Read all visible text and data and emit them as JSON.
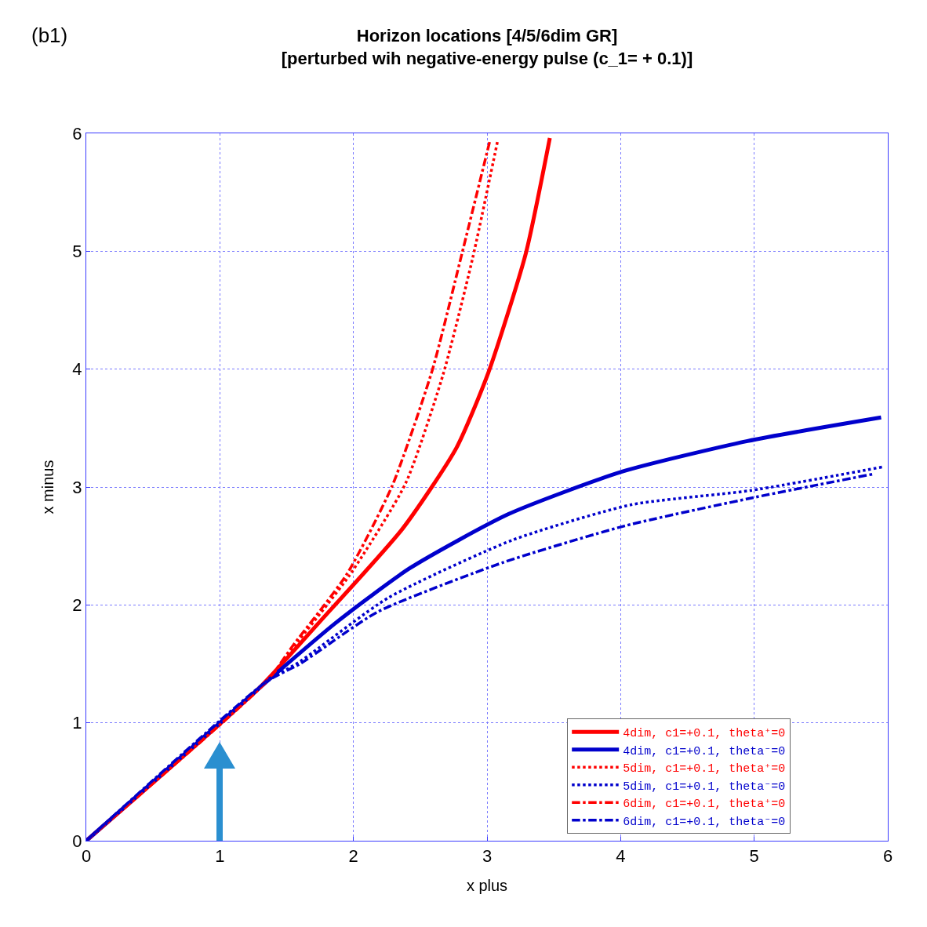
{
  "chart_data": {
    "type": "line",
    "title": "Horizon locations [4/5/6dim GR]\n[perturbed wih negative-energy pulse (c_1= + 0.1)]",
    "annotations": [
      "(b1)"
    ],
    "xlabel": "x plus",
    "ylabel": "x minus",
    "xlim": [
      0,
      6
    ],
    "ylim": [
      0,
      6
    ],
    "xticks": [
      0,
      1,
      2,
      3,
      4,
      5,
      6
    ],
    "yticks": [
      0,
      1,
      2,
      3,
      4,
      5,
      6
    ],
    "grid": true,
    "legend": "bottom right",
    "series": [
      {
        "name": "4dim, c1=+0.1, theta⁺=0",
        "color": "#ff0000",
        "line_style": "solid",
        "x": [
          0,
          1.29,
          1.75,
          2.37,
          2.77,
          3.01,
          3.29,
          3.47
        ],
        "values": [
          0,
          1.29,
          1.86,
          2.65,
          3.33,
          3.97,
          4.98,
          5.96
        ]
      },
      {
        "name": "4dim, c1=+0.1, theta⁻=0",
        "color": "#0000cc",
        "line_style": "solid",
        "x": [
          0,
          1.29,
          1.87,
          2.42,
          3.16,
          4.01,
          4.95,
          5.95
        ],
        "values": [
          0,
          1.29,
          1.85,
          2.31,
          2.77,
          3.13,
          3.39,
          3.59
        ]
      },
      {
        "name": "5dim, c1=+0.1, theta⁺=0",
        "color": "#ff0000",
        "line_style": "dotted",
        "x": [
          0,
          1.35,
          1.55,
          1.97,
          2.39,
          2.67,
          2.89,
          3.08
        ],
        "values": [
          0,
          1.35,
          1.64,
          2.25,
          3.03,
          3.95,
          4.93,
          5.94
        ]
      },
      {
        "name": "5dim, c1=+0.1, theta⁻=0",
        "color": "#0000cc",
        "line_style": "dotted",
        "x": [
          0,
          1.35,
          1.6,
          2.26,
          3.19,
          4.08,
          4.97,
          5.96
        ],
        "values": [
          0,
          1.35,
          1.52,
          2.06,
          2.55,
          2.85,
          2.97,
          3.17
        ]
      },
      {
        "name": "6dim, c1=+0.1, theta⁺=0",
        "color": "#ff0000",
        "line_style": "dashdot",
        "x": [
          0,
          1.35,
          1.55,
          1.95,
          2.29,
          2.59,
          2.81,
          3.02
        ],
        "values": [
          0,
          1.35,
          1.66,
          2.26,
          3.01,
          3.99,
          4.97,
          5.93
        ]
      },
      {
        "name": "6dim, c1=+0.1, theta⁻=0",
        "color": "#0000cc",
        "line_style": "dashdot",
        "x": [
          0,
          1.35,
          1.6,
          2.18,
          3.12,
          4.03,
          4.95,
          5.89
        ],
        "values": [
          0,
          1.35,
          1.5,
          1.94,
          2.36,
          2.67,
          2.9,
          3.11
        ]
      }
    ]
  }
}
